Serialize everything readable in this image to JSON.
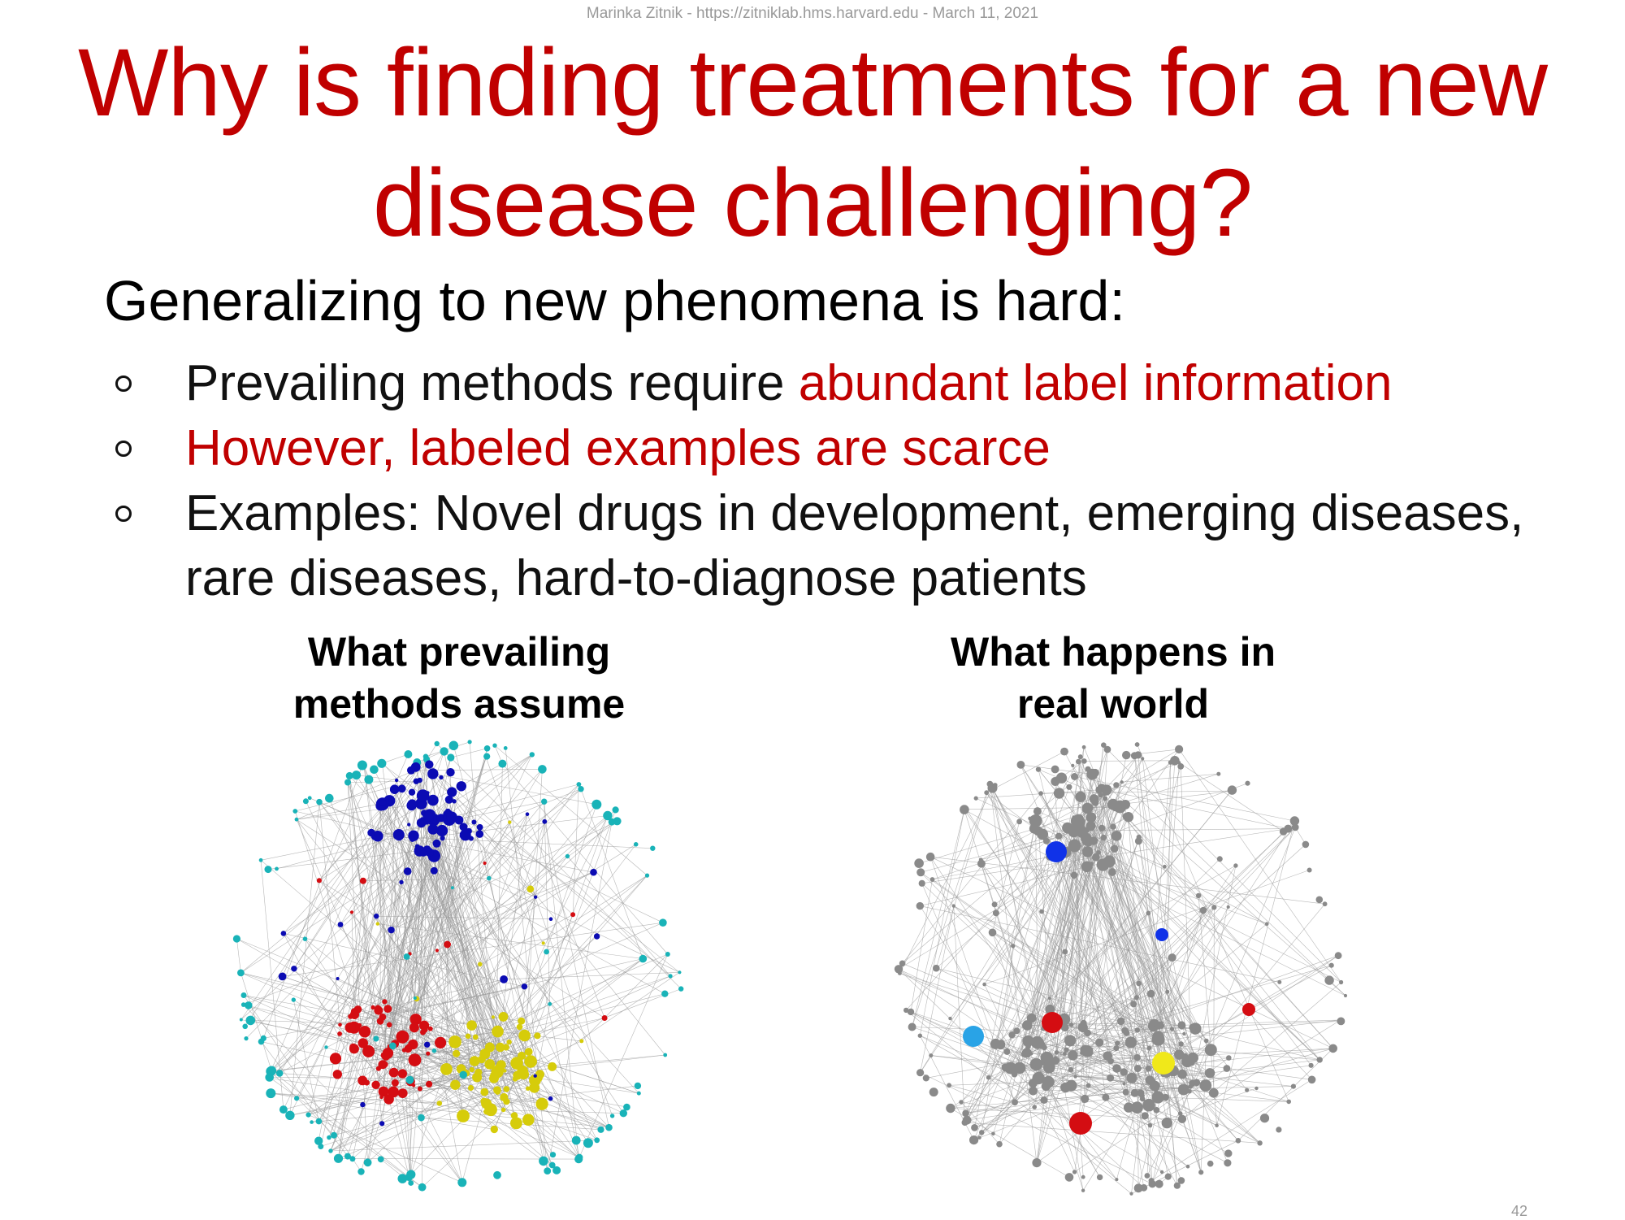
{
  "header": {
    "line": "Marinka Zitnik - https://zitniklab.hms.harvard.edu - March 11, 2021"
  },
  "title": {
    "line1": "Why is finding treatments for a new",
    "line2": "disease challenging?"
  },
  "subtitle": "Generalizing to new phenomena is hard:",
  "bullets": [
    {
      "text_before": "Prevailing methods require ",
      "text_red": "abundant label information",
      "text_after": ""
    },
    {
      "text_before": "",
      "text_red": "However, labeled examples are scarce",
      "text_after": ""
    },
    {
      "text_before": "Examples: Novel drugs in development, emerging diseases, rare diseases, hard-to-diagnose patients",
      "text_red": "",
      "text_after": ""
    }
  ],
  "figures": {
    "left": {
      "caption_line1": "What prevailing",
      "caption_line2": "methods assume",
      "palette": [
        "#0b0bb3",
        "#19b3b8",
        "#d40d12",
        "#d6cc0a"
      ]
    },
    "right": {
      "caption_line1": "What happens in",
      "caption_line2": "real world",
      "base_color": "#8a8a8a",
      "highlight_colors": [
        "#1032e8",
        "#29a3e6",
        "#d40d12",
        "#f0e81a"
      ]
    }
  },
  "colors": {
    "accent": "#c00000",
    "text": "#111111",
    "muted": "#999999"
  },
  "page_number": "42"
}
